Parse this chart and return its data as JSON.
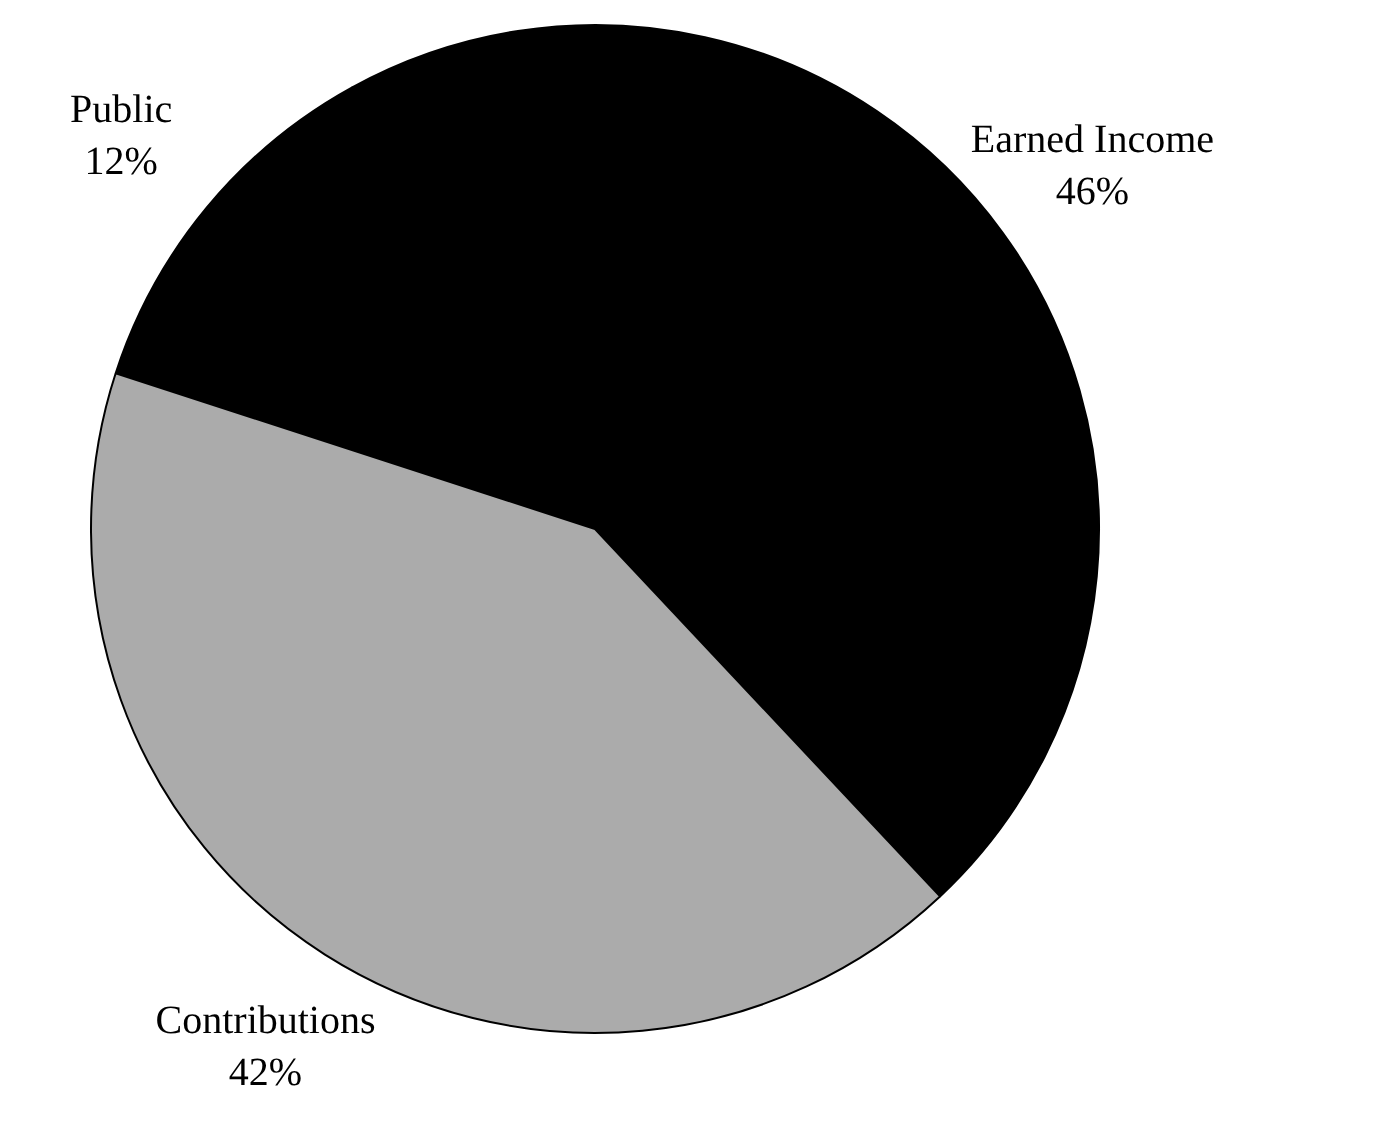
{
  "chart_data": {
    "type": "pie",
    "categories": [
      "Public",
      "Earned Income",
      "Contributions"
    ],
    "values": [
      12,
      46,
      42
    ],
    "colors": [
      "#000000",
      "#000000",
      "#ababab"
    ],
    "value_labels": [
      "12%",
      "46%",
      "42%"
    ],
    "legend": false
  }
}
